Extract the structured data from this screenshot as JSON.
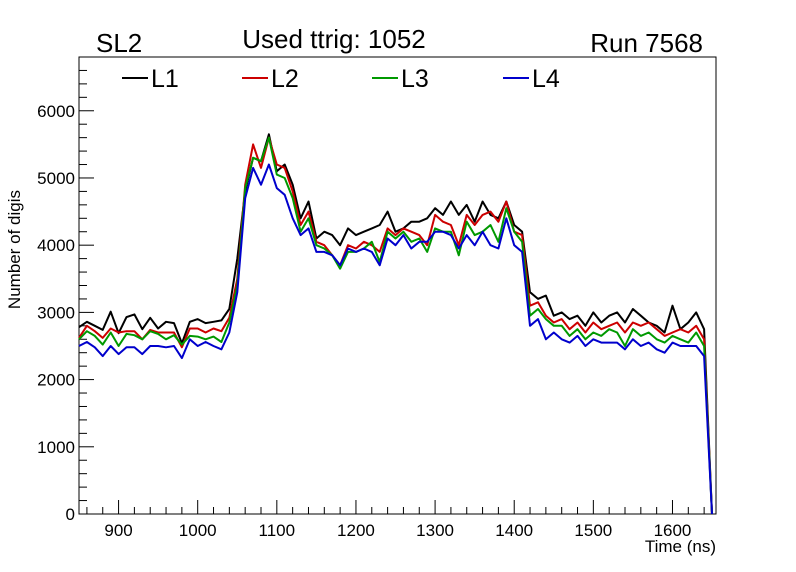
{
  "header": {
    "left_label": "SL2",
    "center_label": "Used ttrig: 1052",
    "right_label": "Run 7568"
  },
  "chart_data": {
    "type": "line",
    "title": "Used ttrig: 1052",
    "xlabel": "Time (ns)",
    "ylabel": "Number of digis",
    "xlim": [
      850,
      1655
    ],
    "ylim": [
      0,
      6800
    ],
    "x_ticks": [
      900,
      1000,
      1100,
      1200,
      1300,
      1400,
      1500,
      1600
    ],
    "y_ticks": [
      0,
      1000,
      2000,
      3000,
      4000,
      5000,
      6000
    ],
    "grid": false,
    "legend_position": "top",
    "x": [
      850,
      860,
      870,
      880,
      890,
      900,
      910,
      920,
      930,
      940,
      950,
      960,
      970,
      980,
      990,
      1000,
      1010,
      1020,
      1030,
      1040,
      1050,
      1060,
      1070,
      1080,
      1090,
      1100,
      1110,
      1120,
      1130,
      1140,
      1150,
      1160,
      1170,
      1180,
      1190,
      1200,
      1210,
      1220,
      1230,
      1240,
      1250,
      1260,
      1270,
      1280,
      1290,
      1300,
      1310,
      1320,
      1330,
      1340,
      1350,
      1360,
      1370,
      1380,
      1390,
      1400,
      1410,
      1420,
      1430,
      1440,
      1450,
      1460,
      1470,
      1480,
      1490,
      1500,
      1510,
      1520,
      1530,
      1540,
      1550,
      1560,
      1570,
      1580,
      1590,
      1600,
      1610,
      1620,
      1630,
      1640,
      1650
    ],
    "series": [
      {
        "name": "L1",
        "color": "#000000",
        "values": [
          2780,
          2860,
          2800,
          2740,
          3010,
          2690,
          2930,
          2970,
          2750,
          2920,
          2760,
          2860,
          2840,
          2540,
          2860,
          2900,
          2840,
          2860,
          2880,
          3050,
          3800,
          4800,
          5300,
          5250,
          5650,
          5100,
          5200,
          4900,
          4400,
          4650,
          4100,
          4200,
          4150,
          4000,
          4250,
          4150,
          4200,
          4250,
          4300,
          4500,
          4200,
          4250,
          4350,
          4350,
          4400,
          4550,
          4450,
          4650,
          4450,
          4600,
          4350,
          4650,
          4450,
          4400,
          4650,
          4300,
          4200,
          3300,
          3200,
          3250,
          2950,
          3000,
          2900,
          2950,
          2800,
          3000,
          2850,
          2950,
          3000,
          2850,
          3050,
          2950,
          2850,
          2800,
          2700,
          3100,
          2750,
          2850,
          3000,
          2750,
          0
        ]
      },
      {
        "name": "L2",
        "color": "#cc0000",
        "values": [
          2620,
          2800,
          2720,
          2620,
          2760,
          2700,
          2720,
          2720,
          2600,
          2740,
          2700,
          2700,
          2700,
          2480,
          2760,
          2760,
          2700,
          2760,
          2720,
          2920,
          3500,
          4900,
          5500,
          5150,
          5600,
          5200,
          5150,
          4800,
          4300,
          4500,
          4050,
          4000,
          3850,
          3700,
          4000,
          3950,
          4050,
          4000,
          3900,
          4250,
          4150,
          4250,
          4200,
          4150,
          4000,
          4450,
          4350,
          4300,
          4000,
          4450,
          4300,
          4450,
          4500,
          4350,
          4650,
          4200,
          4150,
          3100,
          3150,
          2950,
          2850,
          2900,
          2750,
          2850,
          2700,
          2850,
          2750,
          2800,
          2850,
          2700,
          2850,
          2800,
          2850,
          2750,
          2650,
          2700,
          2750,
          2700,
          2800,
          2600,
          0
        ]
      },
      {
        "name": "L3",
        "color": "#009900",
        "values": [
          2600,
          2720,
          2650,
          2520,
          2700,
          2500,
          2680,
          2660,
          2600,
          2720,
          2680,
          2600,
          2660,
          2520,
          2650,
          2640,
          2600,
          2640,
          2560,
          2850,
          3400,
          4850,
          5300,
          5250,
          5600,
          5050,
          5000,
          4700,
          4200,
          4400,
          4000,
          3950,
          3850,
          3650,
          3900,
          3900,
          3950,
          4050,
          3750,
          4200,
          4100,
          4200,
          4050,
          4100,
          3900,
          4250,
          4200,
          4200,
          3850,
          4350,
          4150,
          4200,
          4300,
          4050,
          4550,
          4200,
          4050,
          2950,
          3050,
          2900,
          2800,
          2800,
          2650,
          2750,
          2600,
          2700,
          2650,
          2750,
          2700,
          2500,
          2750,
          2650,
          2700,
          2600,
          2550,
          2650,
          2600,
          2550,
          2700,
          2500,
          0
        ]
      },
      {
        "name": "L4",
        "color": "#0000cc",
        "values": [
          2500,
          2560,
          2480,
          2350,
          2500,
          2380,
          2480,
          2480,
          2380,
          2500,
          2500,
          2480,
          2500,
          2320,
          2600,
          2500,
          2560,
          2500,
          2450,
          2700,
          3300,
          4700,
          5150,
          4900,
          5200,
          4850,
          4750,
          4400,
          4150,
          4250,
          3900,
          3900,
          3850,
          3700,
          3950,
          3900,
          3950,
          3900,
          3700,
          4100,
          4000,
          4150,
          3950,
          4050,
          4050,
          4200,
          4200,
          4150,
          3950,
          4150,
          4000,
          4200,
          4000,
          3950,
          4400,
          4000,
          3900,
          2800,
          2900,
          2600,
          2700,
          2600,
          2550,
          2650,
          2500,
          2600,
          2550,
          2550,
          2550,
          2450,
          2600,
          2500,
          2550,
          2450,
          2400,
          2550,
          2500,
          2500,
          2500,
          2350,
          0
        ]
      }
    ]
  }
}
